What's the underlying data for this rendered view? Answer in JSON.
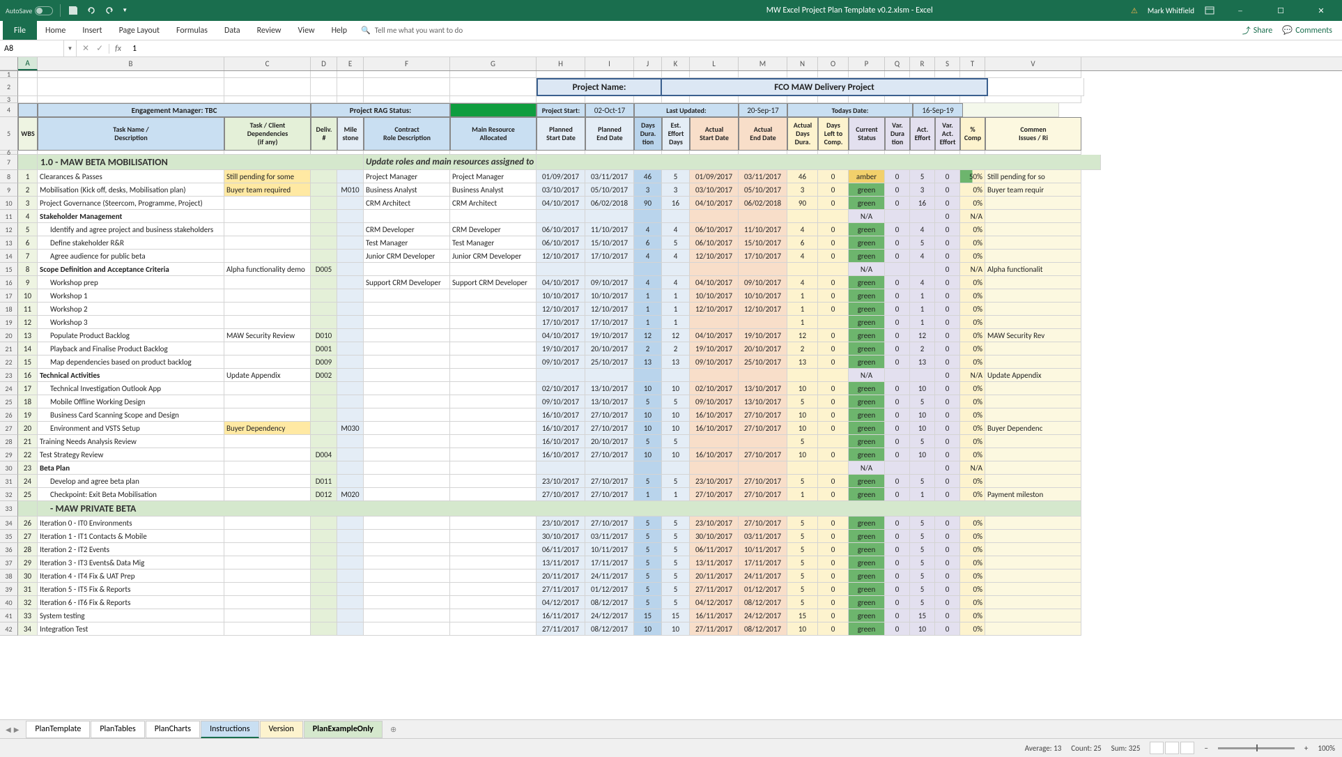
{
  "titlebar": {
    "autosave": "AutoSave",
    "filename": "MW Excel Project Plan Template v0.2.xlsm  -  Excel",
    "user": "Mark Whitfield"
  },
  "ribbon": {
    "tabs": [
      "File",
      "Home",
      "Insert",
      "Page Layout",
      "Formulas",
      "Data",
      "Review",
      "View",
      "Help"
    ],
    "tellme": "Tell me what you want to do",
    "share": "Share",
    "comments": "Comments"
  },
  "namebox": {
    "ref": "A8",
    "formula": "1"
  },
  "cols": [
    "A",
    "B",
    "C",
    "D",
    "E",
    "F",
    "G",
    "H",
    "I",
    "J",
    "K",
    "L",
    "M",
    "N",
    "O",
    "P",
    "Q",
    "R",
    "S",
    "T",
    "V"
  ],
  "project": {
    "label": "Project Name:",
    "value": "FCO MAW Delivery Project"
  },
  "meta": {
    "engagement_label": "Engagement Manager:   TBC",
    "rag_label": "Project RAG Status:",
    "start_label": "Project Start:",
    "start_val": "02-Oct-17",
    "updated_label": "Last Updated:",
    "updated_val": "20-Sep-17",
    "today_label": "Todays Date:",
    "today_val": "16-Sep-19"
  },
  "headers": {
    "wbs": "WBS",
    "task": "Task Name /\nDescription",
    "dep": "Task / Client\nDependencies\n(if any)",
    "deliv": "Deliv.\n#",
    "mile": "Mile\nstone",
    "role": "Contract\nRole Description",
    "resource": "Main Resource\nAllocated",
    "pstart": "Planned\nStart Date",
    "pend": "Planned\nEnd Date",
    "dura": "Days\nDura.\ntion",
    "effort": "Est.\nEffort\nDays",
    "astart": "Actual\nStart Date",
    "aend": "Actual\nEnd Date",
    "adura": "Actual\nDays\nDura.",
    "aleft": "Days\nLeft to\nComp.",
    "status": "Current\nStatus",
    "vdura": "Var.\nDura\ntion",
    "aeff": "Act.\nEffort",
    "veff": "Var.\nAct.\nEffort",
    "comp": "%\nComp",
    "comment": "Commen\nIssues / Ri"
  },
  "section1": "1.0 - MAW BETA MOBILISATION",
  "section1_note": "Update roles and main resources assigned to tasks",
  "section2": " - MAW PRIVATE BETA",
  "rows": [
    {
      "n": 8,
      "w": "1",
      "t": "Clearances & Passes",
      "tb": 0,
      "ti": 0,
      "dep": "Still pending for some",
      "depc": "amber",
      "role": "Project Manager",
      "res": "Project Manager",
      "ps": "01/09/2017",
      "pe": "03/11/2017",
      "du": "46",
      "ef": "5",
      "as": "01/09/2017",
      "ae": "03/11/2017",
      "ad": "46",
      "al": "0",
      "st": "amber",
      "sv": "amber",
      "vd": "0",
      "af": "5",
      "vf": "0",
      "cp": "50%",
      "cpc": "grn",
      "cm": "Still pending for so"
    },
    {
      "n": 9,
      "w": "2",
      "t": "Mobilisation (Kick off, desks, Mobilisation plan)",
      "tb": 0,
      "ti": 0,
      "dep": "Buyer team required",
      "depc": "amber",
      "mile": "M010",
      "role": "Business Analyst",
      "res": "Business Analyst",
      "ps": "03/10/2017",
      "pe": "05/10/2017",
      "du": "3",
      "ef": "3",
      "as": "03/10/2017",
      "ae": "05/10/2017",
      "ad": "3",
      "al": "0",
      "st": "green",
      "sv": "green",
      "vd": "0",
      "af": "3",
      "vf": "0",
      "cp": "0%",
      "cm": "Buyer team requir"
    },
    {
      "n": 10,
      "w": "3",
      "t": "Project Governance (Steercom, Programme, Project)",
      "tb": 0,
      "ti": 0,
      "role": "CRM Architect",
      "res": "CRM Architect",
      "ps": "04/10/2017",
      "pe": "06/02/2018",
      "du": "90",
      "ef": "16",
      "as": "04/10/2017",
      "ae": "06/02/2018",
      "ad": "90",
      "al": "0",
      "st": "green",
      "sv": "green",
      "vd": "0",
      "af": "16",
      "vf": "0",
      "cp": "0%"
    },
    {
      "n": 11,
      "w": "4",
      "t": "Stakeholder Management",
      "tb": 1,
      "ti": 0,
      "st": "na",
      "sv": "N/A",
      "vf": "0",
      "cp": "N/A"
    },
    {
      "n": 12,
      "w": "5",
      "t": "Identify and agree project and business  stakeholders",
      "tb": 0,
      "ti": 1,
      "role": "CRM Developer",
      "res": "CRM Developer",
      "ps": "06/10/2017",
      "pe": "11/10/2017",
      "du": "4",
      "ef": "4",
      "as": "06/10/2017",
      "ae": "11/10/2017",
      "ad": "4",
      "al": "0",
      "st": "green",
      "sv": "green",
      "vd": "0",
      "af": "4",
      "vf": "0",
      "cp": "0%"
    },
    {
      "n": 13,
      "w": "6",
      "t": "Define stakeholder R&R",
      "tb": 0,
      "ti": 1,
      "role": "Test Manager",
      "res": "Test Manager",
      "ps": "06/10/2017",
      "pe": "15/10/2017",
      "du": "6",
      "ef": "5",
      "as": "06/10/2017",
      "ae": "15/10/2017",
      "ad": "6",
      "al": "0",
      "st": "green",
      "sv": "green",
      "vd": "0",
      "af": "5",
      "vf": "0",
      "cp": "0%"
    },
    {
      "n": 14,
      "w": "7",
      "t": "Agree audience for public beta",
      "tb": 0,
      "ti": 1,
      "role": "Junior CRM Developer",
      "res": "Junior CRM Developer",
      "ps": "12/10/2017",
      "pe": "17/10/2017",
      "du": "4",
      "ef": "4",
      "as": "12/10/2017",
      "ae": "17/10/2017",
      "ad": "4",
      "al": "0",
      "st": "green",
      "sv": "green",
      "vd": "0",
      "af": "4",
      "vf": "0",
      "cp": "0%"
    },
    {
      "n": 15,
      "w": "8",
      "t": "Scope Definition and Acceptance Criteria",
      "tb": 1,
      "ti": 0,
      "dep": "Alpha functionality demo",
      "deliv": "D005",
      "st": "na",
      "sv": "N/A",
      "vf": "0",
      "cp": "N/A",
      "cm": "Alpha functionalit"
    },
    {
      "n": 16,
      "w": "9",
      "t": "Workshop prep",
      "tb": 0,
      "ti": 1,
      "role": "Support CRM Developer",
      "res": "Support CRM Developer",
      "ps": "04/10/2017",
      "pe": "09/10/2017",
      "du": "4",
      "ef": "4",
      "as": "04/10/2017",
      "ae": "09/10/2017",
      "ad": "4",
      "al": "0",
      "st": "green",
      "sv": "green",
      "vd": "0",
      "af": "4",
      "vf": "0",
      "cp": "0%"
    },
    {
      "n": 17,
      "w": "10",
      "t": "Workshop 1",
      "tb": 0,
      "ti": 1,
      "ps": "10/10/2017",
      "pe": "10/10/2017",
      "du": "1",
      "ef": "1",
      "as": "10/10/2017",
      "ae": "10/10/2017",
      "ad": "1",
      "al": "0",
      "st": "green",
      "sv": "green",
      "vd": "0",
      "af": "1",
      "vf": "0",
      "cp": "0%"
    },
    {
      "n": 18,
      "w": "11",
      "t": "Workshop 2",
      "tb": 0,
      "ti": 1,
      "ps": "12/10/2017",
      "pe": "12/10/2017",
      "du": "1",
      "ef": "1",
      "as": "12/10/2017",
      "ae": "12/10/2017",
      "ad": "1",
      "al": "0",
      "st": "green",
      "sv": "green",
      "vd": "0",
      "af": "1",
      "vf": "0",
      "cp": "0%"
    },
    {
      "n": 19,
      "w": "12",
      "t": "Workshop 3",
      "tb": 0,
      "ti": 1,
      "ps": "17/10/2017",
      "pe": "17/10/2017",
      "du": "1",
      "ef": "1",
      "ad": "1",
      "al": "",
      "st": "green",
      "sv": "green",
      "vd": "0",
      "af": "1",
      "vf": "0",
      "cp": "0%"
    },
    {
      "n": 20,
      "w": "13",
      "t": "Populate Product Backlog",
      "tb": 0,
      "ti": 1,
      "dep": "MAW Security Review",
      "deliv": "D010",
      "ps": "04/10/2017",
      "pe": "19/10/2017",
      "du": "12",
      "ef": "12",
      "as": "04/10/2017",
      "ae": "19/10/2017",
      "ad": "12",
      "al": "0",
      "st": "green",
      "sv": "green",
      "vd": "0",
      "af": "12",
      "vf": "0",
      "cp": "0%",
      "cm": "MAW Security Rev"
    },
    {
      "n": 21,
      "w": "14",
      "t": "Playback and Finalise Product Backlog",
      "tb": 0,
      "ti": 1,
      "deliv": "D001",
      "ps": "19/10/2017",
      "pe": "20/10/2017",
      "du": "2",
      "ef": "2",
      "as": "19/10/2017",
      "ae": "20/10/2017",
      "ad": "2",
      "al": "0",
      "st": "green",
      "sv": "green",
      "vd": "0",
      "af": "2",
      "vf": "0",
      "cp": "0%"
    },
    {
      "n": 22,
      "w": "15",
      "t": "Map dependencies based on product backlog",
      "tb": 0,
      "ti": 1,
      "deliv": "D009",
      "ps": "09/10/2017",
      "pe": "25/10/2017",
      "du": "13",
      "ef": "13",
      "as": "09/10/2017",
      "ae": "25/10/2017",
      "ad": "13",
      "al": "0",
      "st": "green",
      "sv": "green",
      "vd": "0",
      "af": "13",
      "vf": "0",
      "cp": "0%"
    },
    {
      "n": 23,
      "w": "16",
      "t": "Technical Activities",
      "tb": 1,
      "ti": 0,
      "dep": "Update Appendix",
      "deliv": "D002",
      "st": "na",
      "sv": "N/A",
      "vf": "0",
      "cp": "N/A",
      "cm": "Update Appendix"
    },
    {
      "n": 24,
      "w": "17",
      "t": "Technical Investigation Outlook App",
      "tb": 0,
      "ti": 1,
      "ps": "02/10/2017",
      "pe": "13/10/2017",
      "du": "10",
      "ef": "10",
      "as": "02/10/2017",
      "ae": "13/10/2017",
      "ad": "10",
      "al": "0",
      "st": "green",
      "sv": "green",
      "vd": "0",
      "af": "10",
      "vf": "0",
      "cp": "0%"
    },
    {
      "n": 25,
      "w": "18",
      "t": "Mobile Offline Working Design",
      "tb": 0,
      "ti": 1,
      "ps": "09/10/2017",
      "pe": "13/10/2017",
      "du": "5",
      "ef": "5",
      "as": "09/10/2017",
      "ae": "13/10/2017",
      "ad": "5",
      "al": "0",
      "st": "green",
      "sv": "green",
      "vd": "0",
      "af": "5",
      "vf": "0",
      "cp": "0%"
    },
    {
      "n": 26,
      "w": "19",
      "t": "Business Card Scanning Scope and Design",
      "tb": 0,
      "ti": 1,
      "ps": "16/10/2017",
      "pe": "27/10/2017",
      "du": "10",
      "ef": "10",
      "as": "16/10/2017",
      "ae": "27/10/2017",
      "ad": "10",
      "al": "0",
      "st": "green",
      "sv": "green",
      "vd": "0",
      "af": "10",
      "vf": "0",
      "cp": "0%"
    },
    {
      "n": 27,
      "w": "20",
      "t": "Environment and VSTS Setup",
      "tb": 0,
      "ti": 1,
      "dep": "Buyer Dependency",
      "depc": "amber",
      "mile": "M030",
      "ps": "16/10/2017",
      "pe": "27/10/2017",
      "du": "10",
      "ef": "10",
      "as": "16/10/2017",
      "ae": "27/10/2017",
      "ad": "10",
      "al": "0",
      "st": "green",
      "sv": "green",
      "vd": "0",
      "af": "10",
      "vf": "0",
      "cp": "0%",
      "cm": "Buyer Dependenc"
    },
    {
      "n": 28,
      "w": "21",
      "t": "Training Needs Analysis Review",
      "tb": 0,
      "ti": 0,
      "ps": "16/10/2017",
      "pe": "20/10/2017",
      "du": "5",
      "ef": "5",
      "ad": "5",
      "al": "",
      "st": "green",
      "sv": "green",
      "vd": "0",
      "af": "5",
      "vf": "0",
      "cp": "0%"
    },
    {
      "n": 29,
      "w": "22",
      "t": "Test Strategy Review",
      "tb": 0,
      "ti": 0,
      "deliv": "D004",
      "ps": "16/10/2017",
      "pe": "27/10/2017",
      "du": "10",
      "ef": "10",
      "as": "16/10/2017",
      "ae": "27/10/2017",
      "ad": "10",
      "al": "0",
      "st": "green",
      "sv": "green",
      "vd": "0",
      "af": "10",
      "vf": "0",
      "cp": "0%"
    },
    {
      "n": 30,
      "w": "23",
      "t": "Beta Plan",
      "tb": 1,
      "ti": 0,
      "st": "na",
      "sv": "N/A",
      "vf": "0",
      "cp": "N/A"
    },
    {
      "n": 31,
      "w": "24",
      "t": "Develop and agree beta plan",
      "tb": 0,
      "ti": 1,
      "deliv": "D011",
      "ps": "23/10/2017",
      "pe": "27/10/2017",
      "du": "5",
      "ef": "5",
      "as": "23/10/2017",
      "ae": "27/10/2017",
      "ad": "5",
      "al": "0",
      "st": "green",
      "sv": "green",
      "vd": "0",
      "af": "5",
      "vf": "0",
      "cp": "0%"
    },
    {
      "n": 32,
      "w": "25",
      "t": "Checkpoint: Exit Beta Mobilisation",
      "tb": 0,
      "ti": 1,
      "deliv": "D012",
      "mile": "M020",
      "ps": "27/10/2017",
      "pe": "27/10/2017",
      "du": "1",
      "ef": "1",
      "as": "27/10/2017",
      "ae": "27/10/2017",
      "ad": "1",
      "al": "0",
      "st": "green",
      "sv": "green",
      "vd": "0",
      "af": "1",
      "vf": "0",
      "cp": "0%",
      "cm": "Payment mileston"
    }
  ],
  "rows2": [
    {
      "n": 34,
      "w": "26",
      "t": "Iteration 0 - IT0 Environments",
      "ps": "23/10/2017",
      "pe": "27/10/2017",
      "du": "5",
      "ef": "5",
      "as": "23/10/2017",
      "ae": "27/10/2017",
      "ad": "5",
      "al": "0",
      "st": "green",
      "sv": "green",
      "vd": "0",
      "af": "5",
      "vf": "0",
      "cp": "0%"
    },
    {
      "n": 35,
      "w": "27",
      "t": "Iteration 1 - IT1 Contacts & Mobile",
      "ps": "30/10/2017",
      "pe": "03/11/2017",
      "du": "5",
      "ef": "5",
      "as": "30/10/2017",
      "ae": "03/11/2017",
      "ad": "5",
      "al": "0",
      "st": "green",
      "sv": "green",
      "vd": "0",
      "af": "5",
      "vf": "0",
      "cp": "0%"
    },
    {
      "n": 36,
      "w": "28",
      "t": "Iteration 2 - IT2 Events",
      "ps": "06/11/2017",
      "pe": "10/11/2017",
      "du": "5",
      "ef": "5",
      "as": "06/11/2017",
      "ae": "10/11/2017",
      "ad": "5",
      "al": "0",
      "st": "green",
      "sv": "green",
      "vd": "0",
      "af": "5",
      "vf": "0",
      "cp": "0%"
    },
    {
      "n": 37,
      "w": "29",
      "t": "Iteration 3 - IT3 Events& Data Mig",
      "ps": "13/11/2017",
      "pe": "17/11/2017",
      "du": "5",
      "ef": "5",
      "as": "13/11/2017",
      "ae": "17/11/2017",
      "ad": "5",
      "al": "0",
      "st": "green",
      "sv": "green",
      "vd": "0",
      "af": "5",
      "vf": "0",
      "cp": "0%"
    },
    {
      "n": 38,
      "w": "30",
      "t": "Iteration 4 - IT4 Fix & UAT Prep",
      "ps": "20/11/2017",
      "pe": "24/11/2017",
      "du": "5",
      "ef": "5",
      "as": "20/11/2017",
      "ae": "24/11/2017",
      "ad": "5",
      "al": "0",
      "st": "green",
      "sv": "green",
      "vd": "0",
      "af": "5",
      "vf": "0",
      "cp": "0%"
    },
    {
      "n": 39,
      "w": "31",
      "t": "Iteration 5 - IT5 Fix & Reports",
      "ps": "27/11/2017",
      "pe": "01/12/2017",
      "du": "5",
      "ef": "5",
      "as": "27/11/2017",
      "ae": "01/12/2017",
      "ad": "5",
      "al": "0",
      "st": "green",
      "sv": "green",
      "vd": "0",
      "af": "5",
      "vf": "0",
      "cp": "0%"
    },
    {
      "n": 40,
      "w": "32",
      "t": "Iteration 6 - IT6 Fix & Reports",
      "ps": "04/12/2017",
      "pe": "08/12/2017",
      "du": "5",
      "ef": "5",
      "as": "04/12/2017",
      "ae": "08/12/2017",
      "ad": "5",
      "al": "0",
      "st": "green",
      "sv": "green",
      "vd": "0",
      "af": "5",
      "vf": "0",
      "cp": "0%"
    },
    {
      "n": 41,
      "w": "33",
      "t": "System testing",
      "ps": "16/11/2017",
      "pe": "24/12/2017",
      "du": "15",
      "ef": "15",
      "as": "16/11/2017",
      "ae": "24/12/2017",
      "ad": "15",
      "al": "0",
      "st": "green",
      "sv": "green",
      "vd": "0",
      "af": "15",
      "vf": "0",
      "cp": "0%"
    },
    {
      "n": 42,
      "w": "34",
      "t": "Integration Test",
      "ps": "27/11/2017",
      "pe": "08/12/2017",
      "du": "10",
      "ef": "10",
      "as": "27/11/2017",
      "ae": "08/12/2017",
      "ad": "10",
      "al": "0",
      "st": "green",
      "sv": "green",
      "vd": "0",
      "af": "10",
      "vf": "0",
      "cp": "0%"
    }
  ],
  "sheettabs": [
    "PlanTemplate",
    "PlanTables",
    "PlanCharts",
    "Instructions",
    "Version",
    "PlanExampleOnly"
  ],
  "statusbar": {
    "avg": "Average: 13",
    "count": "Count: 25",
    "sum": "Sum: 325",
    "zoom": "100%"
  }
}
